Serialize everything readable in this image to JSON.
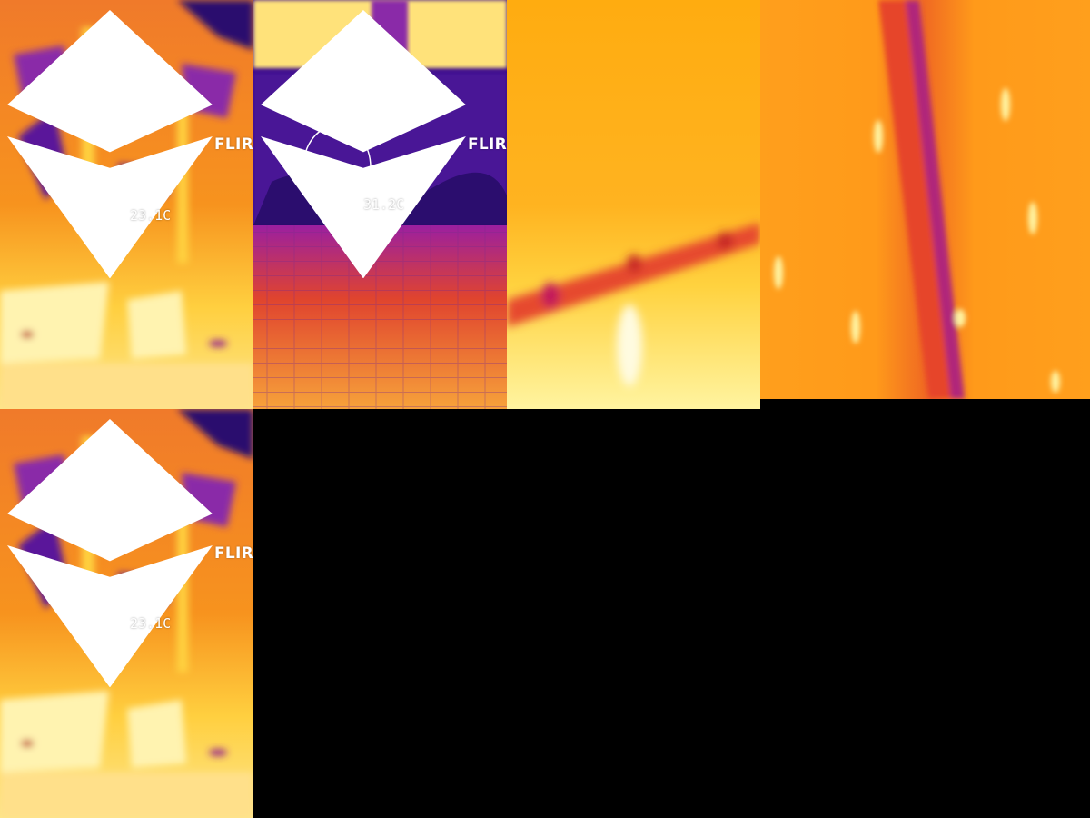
{
  "tiles": [
    {
      "id": "thermal-facade-1",
      "logo": "FLIR",
      "readout": "23.1C",
      "tool": "spot-crosshair"
    },
    {
      "id": "thermal-hedge",
      "logo": "FLIR",
      "readout": "31.2C",
      "tool": "ellipse-area"
    },
    {
      "id": "thermal-closeup-crack",
      "logo": "",
      "readout": ""
    },
    {
      "id": "thermal-closeup-stripes",
      "logo": "",
      "readout": ""
    },
    {
      "id": "thermal-facade-2",
      "logo": "FLIR",
      "readout": "23.1C",
      "tool": "spot-crosshair"
    }
  ],
  "palette": {
    "background": "#000000",
    "cold": "#3a0a8c",
    "cool": "#7a1fa8",
    "mid": "#e0442e",
    "warm": "#f7931e",
    "hot": "#ffd23f",
    "hottest": "#fff7b0"
  }
}
